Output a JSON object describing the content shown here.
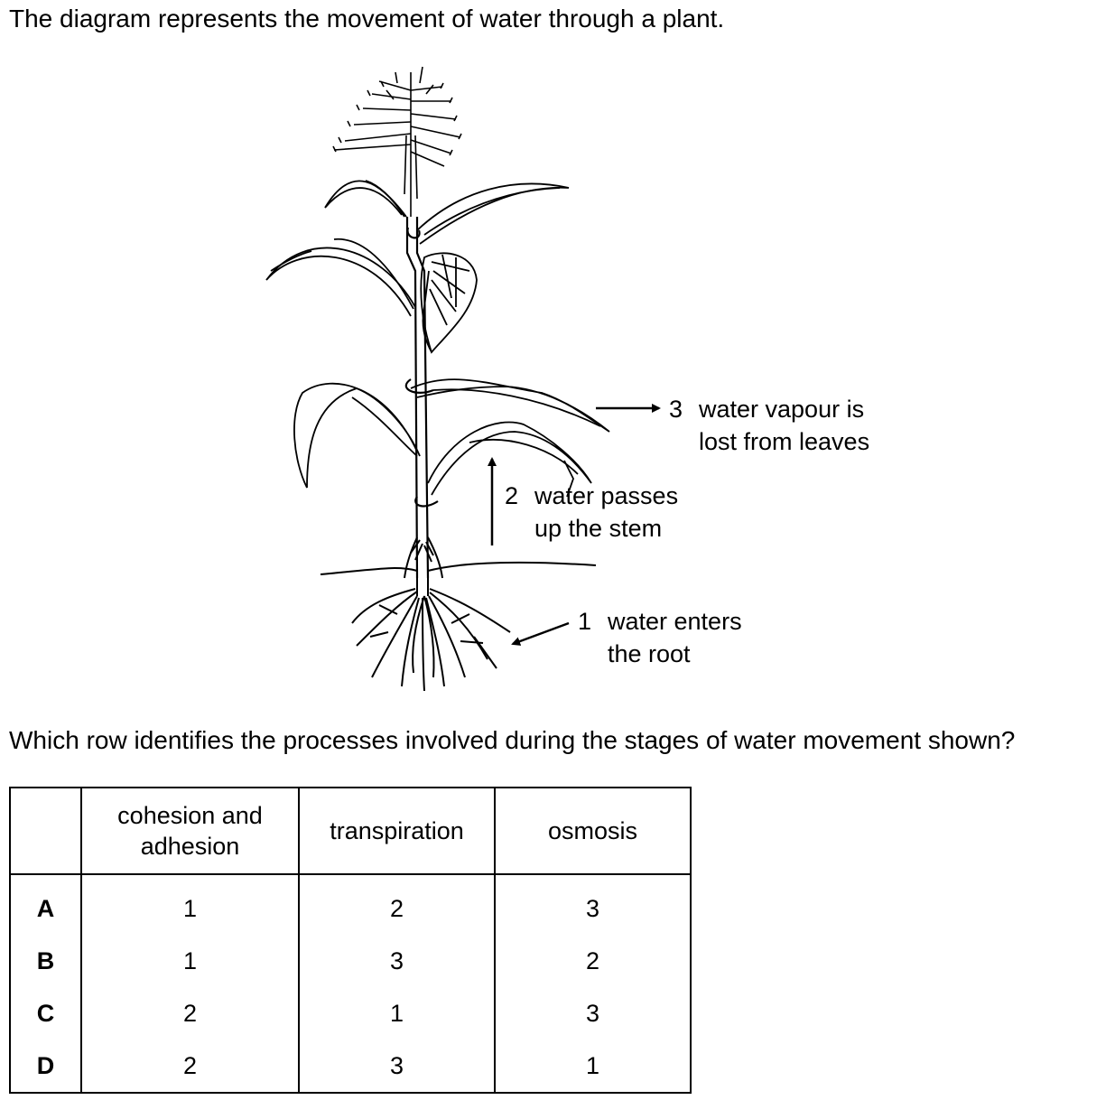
{
  "intro": "The diagram represents the movement of water through a plant.",
  "diagram": {
    "label1": {
      "number": "1",
      "line1": "water enters",
      "line2": "the root"
    },
    "label2": {
      "number": "2",
      "line1": "water passes",
      "line2": "up the stem"
    },
    "label3": {
      "number": "3",
      "line1": "water vapour is",
      "line2": "lost from leaves"
    }
  },
  "question": "Which row identifies the processes involved during the stages of water movement shown?",
  "table": {
    "headers": [
      "",
      "cohesion and adhesion",
      "transpiration",
      "osmosis"
    ],
    "rows": [
      {
        "key": "A",
        "values": [
          "1",
          "2",
          "3"
        ]
      },
      {
        "key": "B",
        "values": [
          "1",
          "3",
          "2"
        ]
      },
      {
        "key": "C",
        "values": [
          "2",
          "1",
          "3"
        ]
      },
      {
        "key": "D",
        "values": [
          "2",
          "3",
          "1"
        ]
      }
    ]
  }
}
